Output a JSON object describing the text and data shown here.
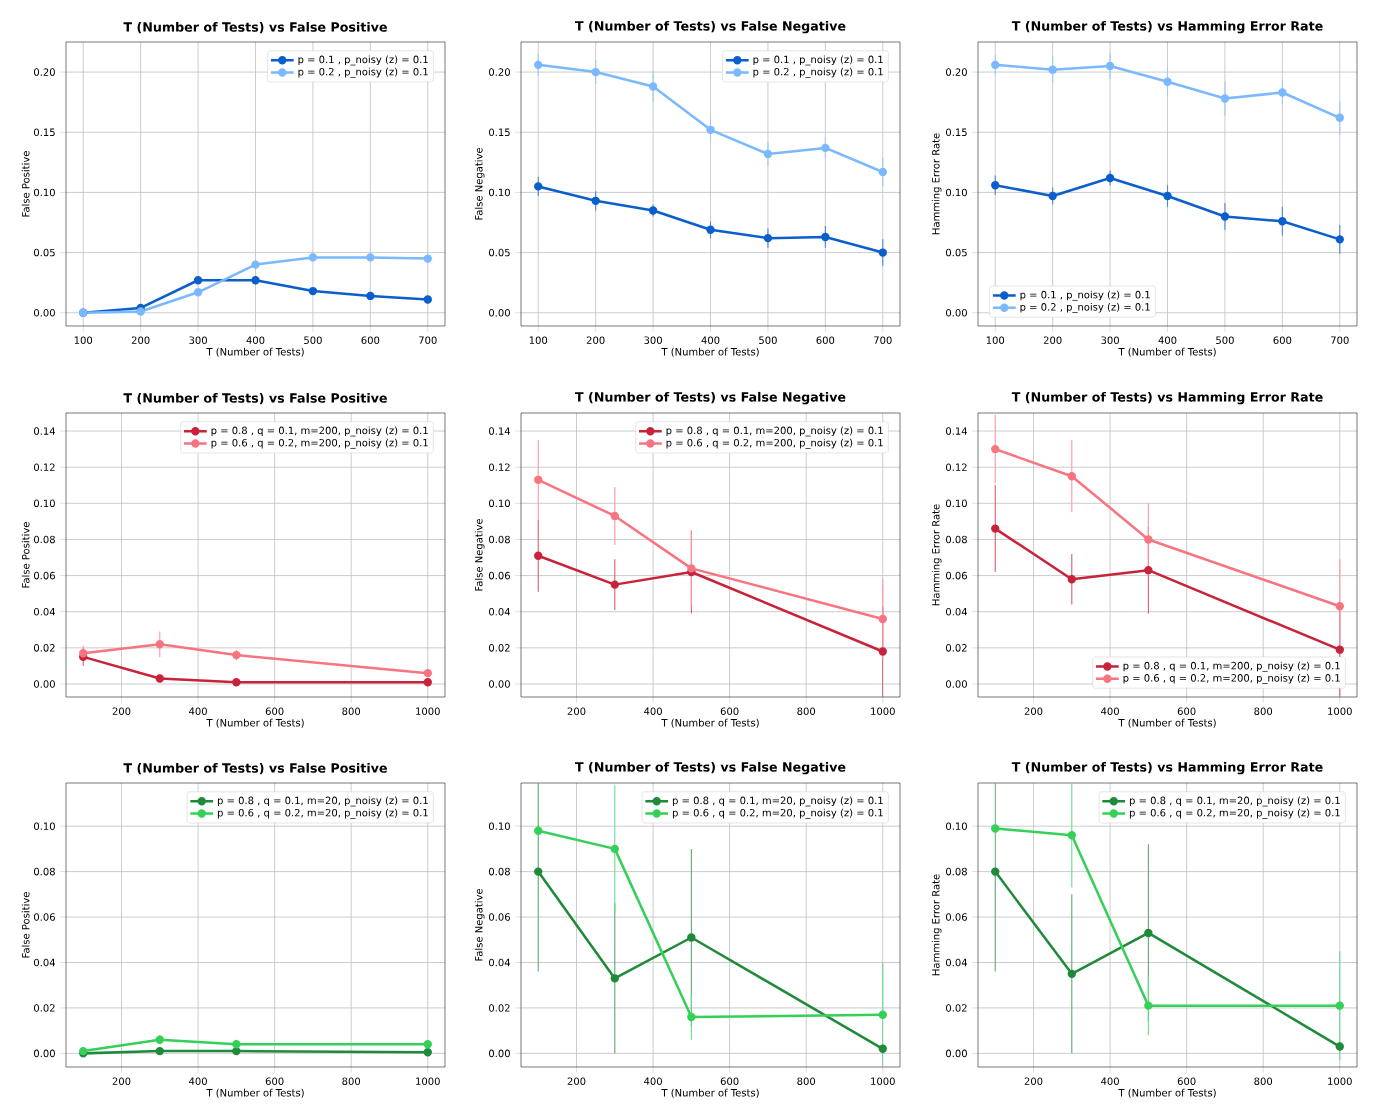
{
  "chart_data": [
    {
      "type": "line",
      "title": "T (Number of Tests) vs False Positive",
      "xlabel": "T (Number of Tests)",
      "ylabel": "False Positive",
      "x": [
        100,
        200,
        300,
        400,
        500,
        600,
        700
      ],
      "xlim": [
        70,
        730
      ],
      "ylim": [
        -0.011,
        0.225
      ],
      "xticks": [
        100,
        200,
        300,
        400,
        500,
        600,
        700
      ],
      "yticks": [
        {
          "value": 0,
          "label": "0.00"
        },
        {
          "value": 0.05,
          "label": "0.05"
        },
        {
          "value": 0.1,
          "label": "0.10"
        },
        {
          "value": 0.15,
          "label": "0.15"
        },
        {
          "value": 0.2,
          "label": "0.20"
        }
      ],
      "grid": true,
      "legend": "top right",
      "marker": "circle",
      "series": [
        {
          "name": "p = 0.1 , p_noisy (z) = 0.1",
          "color": "#0a5fcc",
          "values": [
            0,
            0.004,
            0.027,
            0.027,
            0.018,
            0.014,
            0.011
          ],
          "errors": [
            null,
            0.002,
            0.002,
            0.002,
            0.002,
            0.002,
            0.002
          ]
        },
        {
          "name": "p = 0.2 , p_noisy (z) = 0.1",
          "color": "#7ab8ff",
          "values": [
            0,
            0.001,
            0.017,
            0.04,
            0.046,
            0.046,
            0.045
          ],
          "errors": [
            null,
            null,
            0.003,
            0.003,
            0.002,
            0.002,
            0.002
          ]
        }
      ]
    },
    {
      "type": "line",
      "title": "T (Number of Tests) vs False Negative",
      "xlabel": "T (Number of Tests)",
      "ylabel": "False Negative",
      "x": [
        100,
        200,
        300,
        400,
        500,
        600,
        700
      ],
      "xlim": [
        70,
        730
      ],
      "ylim": [
        -0.011,
        0.225
      ],
      "xticks": [
        100,
        200,
        300,
        400,
        500,
        600,
        700
      ],
      "yticks": [
        {
          "value": 0,
          "label": "0.00"
        },
        {
          "value": 0.05,
          "label": "0.05"
        },
        {
          "value": 0.1,
          "label": "0.10"
        },
        {
          "value": 0.15,
          "label": "0.15"
        },
        {
          "value": 0.2,
          "label": "0.20"
        }
      ],
      "grid": true,
      "legend": "top right",
      "marker": "circle",
      "series": [
        {
          "name": "p = 0.1 , p_noisy (z) = 0.1",
          "color": "#0a5fcc",
          "values": [
            0.105,
            0.093,
            0.085,
            0.069,
            0.062,
            0.063,
            0.05
          ],
          "errors": [
            0.008,
            0.008,
            0.005,
            0.007,
            0.008,
            0.009,
            0.011
          ]
        },
        {
          "name": "p = 0.2 , p_noisy (z) = 0.1",
          "color": "#7ab8ff",
          "values": [
            0.206,
            0.2,
            0.188,
            0.152,
            0.132,
            0.137,
            0.117
          ],
          "errors": [
            0.009,
            0.01,
            0.013,
            0.01,
            0.01,
            0.009,
            0.012
          ]
        }
      ]
    },
    {
      "type": "line",
      "title": "T (Number of Tests) vs Hamming Error Rate",
      "xlabel": "T (Number of Tests)",
      "ylabel": "Hamming Error Rate",
      "x": [
        100,
        200,
        300,
        400,
        500,
        600,
        700
      ],
      "xlim": [
        70,
        730
      ],
      "ylim": [
        -0.011,
        0.225
      ],
      "xticks": [
        100,
        200,
        300,
        400,
        500,
        600,
        700
      ],
      "yticks": [
        {
          "value": 0,
          "label": "0.00"
        },
        {
          "value": 0.05,
          "label": "0.05"
        },
        {
          "value": 0.1,
          "label": "0.10"
        },
        {
          "value": 0.15,
          "label": "0.15"
        },
        {
          "value": 0.2,
          "label": "0.20"
        }
      ],
      "grid": true,
      "legend": "bottom left",
      "marker": "circle",
      "series": [
        {
          "name": "p = 0.1 , p_noisy (z) = 0.1",
          "color": "#0a5fcc",
          "values": [
            0.106,
            0.097,
            0.112,
            0.097,
            0.08,
            0.076,
            0.061
          ],
          "errors": [
            0.008,
            0.007,
            0.006,
            0.009,
            0.011,
            0.012,
            0.012
          ]
        },
        {
          "name": "p = 0.2 , p_noisy (z) = 0.1",
          "color": "#7ab8ff",
          "values": [
            0.206,
            0.202,
            0.205,
            0.192,
            0.178,
            0.183,
            0.162
          ],
          "errors": [
            0.008,
            0.011,
            0.011,
            0.012,
            0.014,
            0.01,
            0.014
          ]
        }
      ]
    },
    {
      "type": "line",
      "title": "T (Number of Tests) vs False Positive",
      "xlabel": "T (Number of Tests)",
      "ylabel": "False Positive",
      "x": [
        100,
        300,
        500,
        1000
      ],
      "xlim": [
        55,
        1045
      ],
      "ylim": [
        -0.0072,
        0.15
      ],
      "xticks": [
        200,
        400,
        600,
        800,
        1000
      ],
      "yticks": [
        {
          "value": 0,
          "label": "0.00"
        },
        {
          "value": 0.02,
          "label": "0.02"
        },
        {
          "value": 0.04,
          "label": "0.04"
        },
        {
          "value": 0.06,
          "label": "0.06"
        },
        {
          "value": 0.08,
          "label": "0.08"
        },
        {
          "value": 0.1,
          "label": "0.10"
        },
        {
          "value": 0.12,
          "label": "0.12"
        },
        {
          "value": 0.14,
          "label": "0.14"
        }
      ],
      "grid": true,
      "legend": "top right",
      "marker": "circle",
      "series": [
        {
          "name": "p = 0.8 , q = 0.1, m=200, p_noisy (z) = 0.1",
          "color": "#c8233a",
          "values": [
            0.015,
            0.003,
            0.001,
            0.001
          ],
          "errors": [
            0.005,
            0.001,
            0.001,
            0.001
          ]
        },
        {
          "name": "p = 0.6 , q = 0.2, m=200, p_noisy (z) = 0.1",
          "color": "#f77480",
          "values": [
            0.017,
            0.022,
            0.016,
            0.006
          ],
          "errors": [
            0.004,
            0.007,
            0.003,
            0.002
          ]
        }
      ]
    },
    {
      "type": "line",
      "title": "T (Number of Tests) vs False Negative",
      "xlabel": "T (Number of Tests)",
      "ylabel": "False Negative",
      "x": [
        100,
        300,
        500,
        1000
      ],
      "xlim": [
        55,
        1045
      ],
      "ylim": [
        -0.0072,
        0.15
      ],
      "xticks": [
        200,
        400,
        600,
        800,
        1000
      ],
      "yticks": [
        {
          "value": 0,
          "label": "0.00"
        },
        {
          "value": 0.02,
          "label": "0.02"
        },
        {
          "value": 0.04,
          "label": "0.04"
        },
        {
          "value": 0.06,
          "label": "0.06"
        },
        {
          "value": 0.08,
          "label": "0.08"
        },
        {
          "value": 0.1,
          "label": "0.10"
        },
        {
          "value": 0.12,
          "label": "0.12"
        },
        {
          "value": 0.14,
          "label": "0.14"
        }
      ],
      "grid": true,
      "legend": "top right",
      "marker": "circle",
      "series": [
        {
          "name": "p = 0.8 , q = 0.1, m=200, p_noisy (z) = 0.1",
          "color": "#c8233a",
          "values": [
            0.071,
            0.055,
            0.062,
            0.018
          ],
          "errors": [
            0.02,
            0.014,
            0.023,
            0.025
          ]
        },
        {
          "name": "p = 0.6 , q = 0.2, m=200, p_noisy (z) = 0.1",
          "color": "#f77480",
          "values": [
            0.113,
            0.093,
            0.064,
            0.036
          ],
          "errors": [
            0.022,
            0.016,
            0.021,
            0.022
          ]
        }
      ]
    },
    {
      "type": "line",
      "title": "T (Number of Tests) vs Hamming Error Rate",
      "xlabel": "T (Number of Tests)",
      "ylabel": "Hamming Error Rate",
      "x": [
        100,
        300,
        500,
        1000
      ],
      "xlim": [
        55,
        1045
      ],
      "ylim": [
        -0.0072,
        0.15
      ],
      "xticks": [
        200,
        400,
        600,
        800,
        1000
      ],
      "yticks": [
        {
          "value": 0,
          "label": "0.00"
        },
        {
          "value": 0.02,
          "label": "0.02"
        },
        {
          "value": 0.04,
          "label": "0.04"
        },
        {
          "value": 0.06,
          "label": "0.06"
        },
        {
          "value": 0.08,
          "label": "0.08"
        },
        {
          "value": 0.1,
          "label": "0.10"
        },
        {
          "value": 0.12,
          "label": "0.12"
        },
        {
          "value": 0.14,
          "label": "0.14"
        }
      ],
      "grid": true,
      "legend": "bottom right",
      "marker": "circle",
      "series": [
        {
          "name": "p = 0.8 , q = 0.1, m=200, p_noisy (z) = 0.1",
          "color": "#c8233a",
          "values": [
            0.086,
            0.058,
            0.063,
            0.019
          ],
          "errors": [
            0.024,
            0.014,
            0.024,
            0.026
          ]
        },
        {
          "name": "p = 0.6 , q = 0.2, m=200, p_noisy (z) = 0.1",
          "color": "#f77480",
          "values": [
            0.13,
            0.115,
            0.08,
            0.043
          ],
          "errors": [
            0.019,
            0.02,
            0.02,
            0.026
          ]
        }
      ]
    },
    {
      "type": "line",
      "title": "T (Number of Tests) vs False Positive",
      "xlabel": "T (Number of Tests)",
      "ylabel": "False Positive",
      "x": [
        100,
        300,
        500,
        1000
      ],
      "xlim": [
        55,
        1045
      ],
      "ylim": [
        -0.006,
        0.119
      ],
      "xticks": [
        200,
        400,
        600,
        800,
        1000
      ],
      "yticks": [
        {
          "value": 0,
          "label": "0.00"
        },
        {
          "value": 0.02,
          "label": "0.02"
        },
        {
          "value": 0.04,
          "label": "0.04"
        },
        {
          "value": 0.06,
          "label": "0.06"
        },
        {
          "value": 0.08,
          "label": "0.08"
        },
        {
          "value": 0.1,
          "label": "0.10"
        }
      ],
      "grid": true,
      "legend": "top right",
      "marker": "circle",
      "series": [
        {
          "name": "p = 0.8 , q = 0.1, m=20, p_noisy (z) = 0.1",
          "color": "#1f8a3a",
          "values": [
            0.0,
            0.001,
            0.001,
            0.0005
          ]
        },
        {
          "name": "p = 0.6 , q = 0.2, m=20, p_noisy (z) = 0.1",
          "color": "#34d058",
          "values": [
            0.001,
            0.006,
            0.004,
            0.004
          ],
          "errors": [
            0.001,
            0.002,
            0.002,
            0.002
          ]
        }
      ]
    },
    {
      "type": "line",
      "title": "T (Number of Tests) vs False Negative",
      "xlabel": "T (Number of Tests)",
      "ylabel": "False Negative",
      "x": [
        100,
        300,
        500,
        1000
      ],
      "xlim": [
        55,
        1045
      ],
      "ylim": [
        -0.006,
        0.119
      ],
      "xticks": [
        200,
        400,
        600,
        800,
        1000
      ],
      "yticks": [
        {
          "value": 0,
          "label": "0.00"
        },
        {
          "value": 0.02,
          "label": "0.02"
        },
        {
          "value": 0.04,
          "label": "0.04"
        },
        {
          "value": 0.06,
          "label": "0.06"
        },
        {
          "value": 0.08,
          "label": "0.08"
        },
        {
          "value": 0.1,
          "label": "0.10"
        }
      ],
      "grid": true,
      "legend": "top right",
      "marker": "circle",
      "series": [
        {
          "name": "p = 0.8 , q = 0.1, m=20, p_noisy (z) = 0.1",
          "color": "#1f8a3a",
          "values": [
            0.08,
            0.033,
            0.051,
            0.002
          ],
          "errors": [
            [
              0.036,
              0.119
            ],
            0.033,
            0.039,
            0.002
          ]
        },
        {
          "name": "p = 0.6 , q = 0.2, m=20, p_noisy (z) = 0.1",
          "color": "#34d058",
          "values": [
            0.098,
            0.09,
            0.016,
            0.017
          ],
          "errors": [
            null,
            0.028,
            0.01,
            0.023
          ]
        }
      ]
    },
    {
      "type": "line",
      "title": "T (Number of Tests) vs Hamming Error Rate",
      "xlabel": "T (Number of Tests)",
      "ylabel": "Hamming Error Rate",
      "x": [
        100,
        300,
        500,
        1000
      ],
      "xlim": [
        55,
        1045
      ],
      "ylim": [
        -0.006,
        0.119
      ],
      "xticks": [
        200,
        400,
        600,
        800,
        1000
      ],
      "yticks": [
        {
          "value": 0,
          "label": "0.00"
        },
        {
          "value": 0.02,
          "label": "0.02"
        },
        {
          "value": 0.04,
          "label": "0.04"
        },
        {
          "value": 0.06,
          "label": "0.06"
        },
        {
          "value": 0.08,
          "label": "0.08"
        },
        {
          "value": 0.1,
          "label": "0.10"
        }
      ],
      "grid": true,
      "legend": "top right",
      "marker": "circle",
      "series": [
        {
          "name": "p = 0.8 , q = 0.1, m=20, p_noisy (z) = 0.1",
          "color": "#1f8a3a",
          "values": [
            0.08,
            0.035,
            0.053,
            0.003
          ],
          "errors": [
            [
              0.036,
              0.119
            ],
            0.035,
            0.039,
            0.002
          ]
        },
        {
          "name": "p = 0.6 , q = 0.2, m=20, p_noisy (z) = 0.1",
          "color": "#34d058",
          "values": [
            0.099,
            0.096,
            0.021,
            0.021
          ],
          "errors": [
            null,
            0.023,
            0.013,
            0.024
          ]
        }
      ]
    }
  ]
}
